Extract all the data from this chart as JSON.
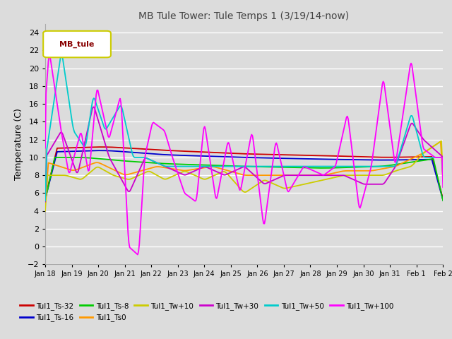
{
  "title": "MB Tule Tower: Tule Temps 1 (3/19/14-now)",
  "ylabel": "Temperature (C)",
  "ylim": [
    -2,
    25
  ],
  "yticks": [
    -2,
    0,
    2,
    4,
    6,
    8,
    10,
    12,
    14,
    16,
    18,
    20,
    22,
    24
  ],
  "x_labels": [
    "Jan 18",
    "Jan 19",
    "Jan 20",
    "Jan 21",
    "Jan 22",
    "Jan 23",
    "Jan 24",
    "Jan 25",
    "Jan 26",
    "Jan 27",
    "Jan 28",
    "Jan 29",
    "Jan 30",
    "Jan 31",
    "Feb 1",
    "Feb 2"
  ],
  "legend_label": "MB_tule",
  "series_labels": [
    "Tul1_Ts-32",
    "Tul1_Ts-16",
    "Tul1_Ts-8",
    "Tul1_Ts0",
    "Tul1_Tw+10",
    "Tul1_Tw+30",
    "Tul1_Tw+50",
    "Tul1_Tw+100"
  ],
  "series_colors": [
    "#cc0000",
    "#0000cc",
    "#00cc00",
    "#ff9900",
    "#cccc00",
    "#cc00cc",
    "#00cccc",
    "#ff00ff"
  ],
  "background_color": "#dcdcdc",
  "grid_color": "#ffffff",
  "legend_box_edge": "#cccc00",
  "legend_box_face": "#ffffff",
  "legend_text_color": "#880000",
  "title_color": "#444444",
  "magenta_keypoints_x": [
    0,
    0.01,
    0.04,
    0.06,
    0.09,
    0.11,
    0.13,
    0.16,
    0.19,
    0.21,
    0.235,
    0.25,
    0.27,
    0.3,
    0.32,
    0.35,
    0.38,
    0.4,
    0.43,
    0.46,
    0.49,
    0.52,
    0.55,
    0.58,
    0.61,
    0.65,
    0.7,
    0.73,
    0.76,
    0.79,
    0.82,
    0.85,
    0.88,
    0.92,
    0.95,
    0.98,
    1.0
  ],
  "magenta_keypoints_y": [
    16,
    22,
    13,
    8,
    13,
    8,
    18,
    12,
    17,
    0,
    -1,
    10,
    14,
    13,
    10,
    6,
    5,
    14,
    5,
    12,
    6,
    13,
    2,
    12,
    6,
    9,
    8,
    9,
    15,
    4,
    9,
    19,
    9,
    21,
    11,
    10,
    10
  ],
  "cyan_keypoints_x": [
    0,
    0.04,
    0.07,
    0.1,
    0.12,
    0.15,
    0.19,
    0.22,
    0.25,
    0.3,
    0.35,
    0.4,
    0.45,
    0.5,
    0.55,
    0.6,
    0.65,
    0.7,
    0.75,
    0.82,
    0.88,
    0.92,
    0.95,
    1.0
  ],
  "cyan_keypoints_y": [
    10,
    22,
    13,
    11,
    17,
    13,
    16,
    10,
    10,
    9,
    9,
    9,
    9,
    9,
    9,
    9,
    9,
    9,
    9,
    9,
    9,
    15,
    10,
    10
  ],
  "red_keypoints_x": [
    0,
    0.15,
    0.3,
    0.5,
    0.7,
    0.85,
    1.0
  ],
  "red_keypoints_y": [
    11.0,
    11.2,
    10.8,
    10.4,
    10.2,
    10.0,
    10.1
  ],
  "blue_keypoints_x": [
    0,
    0.15,
    0.3,
    0.5,
    0.7,
    0.85,
    1.0
  ],
  "blue_keypoints_y": [
    10.6,
    10.8,
    10.3,
    10.0,
    9.8,
    9.7,
    9.8
  ],
  "green_keypoints_x": [
    0,
    0.1,
    0.2,
    0.3,
    0.5,
    0.7,
    0.85,
    1.0
  ],
  "green_keypoints_y": [
    10.0,
    10.0,
    9.6,
    9.3,
    9.0,
    8.8,
    9.0,
    10.0
  ],
  "orange_keypoints_x": [
    0,
    0.07,
    0.13,
    0.2,
    0.28,
    0.35,
    0.42,
    0.5,
    0.58,
    0.65,
    0.7,
    0.75,
    0.82,
    0.88,
    0.95,
    1.0
  ],
  "orange_keypoints_y": [
    9.5,
    8.5,
    9.5,
    8.0,
    9.0,
    8.5,
    9.0,
    8.0,
    8.0,
    8.0,
    8.0,
    8.5,
    8.5,
    9.0,
    10.5,
    12.0
  ],
  "yellow_keypoints_x": [
    0,
    0.05,
    0.09,
    0.13,
    0.17,
    0.21,
    0.26,
    0.3,
    0.35,
    0.4,
    0.45,
    0.5,
    0.55,
    0.6,
    0.65,
    0.7,
    0.75,
    0.8,
    0.85,
    0.88,
    0.92,
    0.95,
    1.0
  ],
  "yellow_keypoints_y": [
    8.0,
    8.0,
    7.5,
    9.0,
    8.0,
    7.5,
    8.5,
    7.5,
    8.5,
    7.5,
    8.5,
    6.0,
    7.5,
    6.5,
    7.0,
    7.5,
    8.0,
    8.0,
    8.0,
    8.5,
    9.0,
    10.5,
    12.0
  ],
  "purple_keypoints_x": [
    0,
    0.04,
    0.08,
    0.12,
    0.16,
    0.21,
    0.25,
    0.3,
    0.35,
    0.4,
    0.45,
    0.5,
    0.55,
    0.6,
    0.65,
    0.7,
    0.75,
    0.8,
    0.85,
    0.88,
    0.92,
    0.95,
    1.0
  ],
  "purple_keypoints_y": [
    10,
    13,
    8,
    16,
    10,
    6,
    10,
    9,
    8,
    9,
    8,
    9,
    7,
    8,
    8,
    8,
    8,
    7,
    7,
    9,
    14,
    12,
    10
  ]
}
